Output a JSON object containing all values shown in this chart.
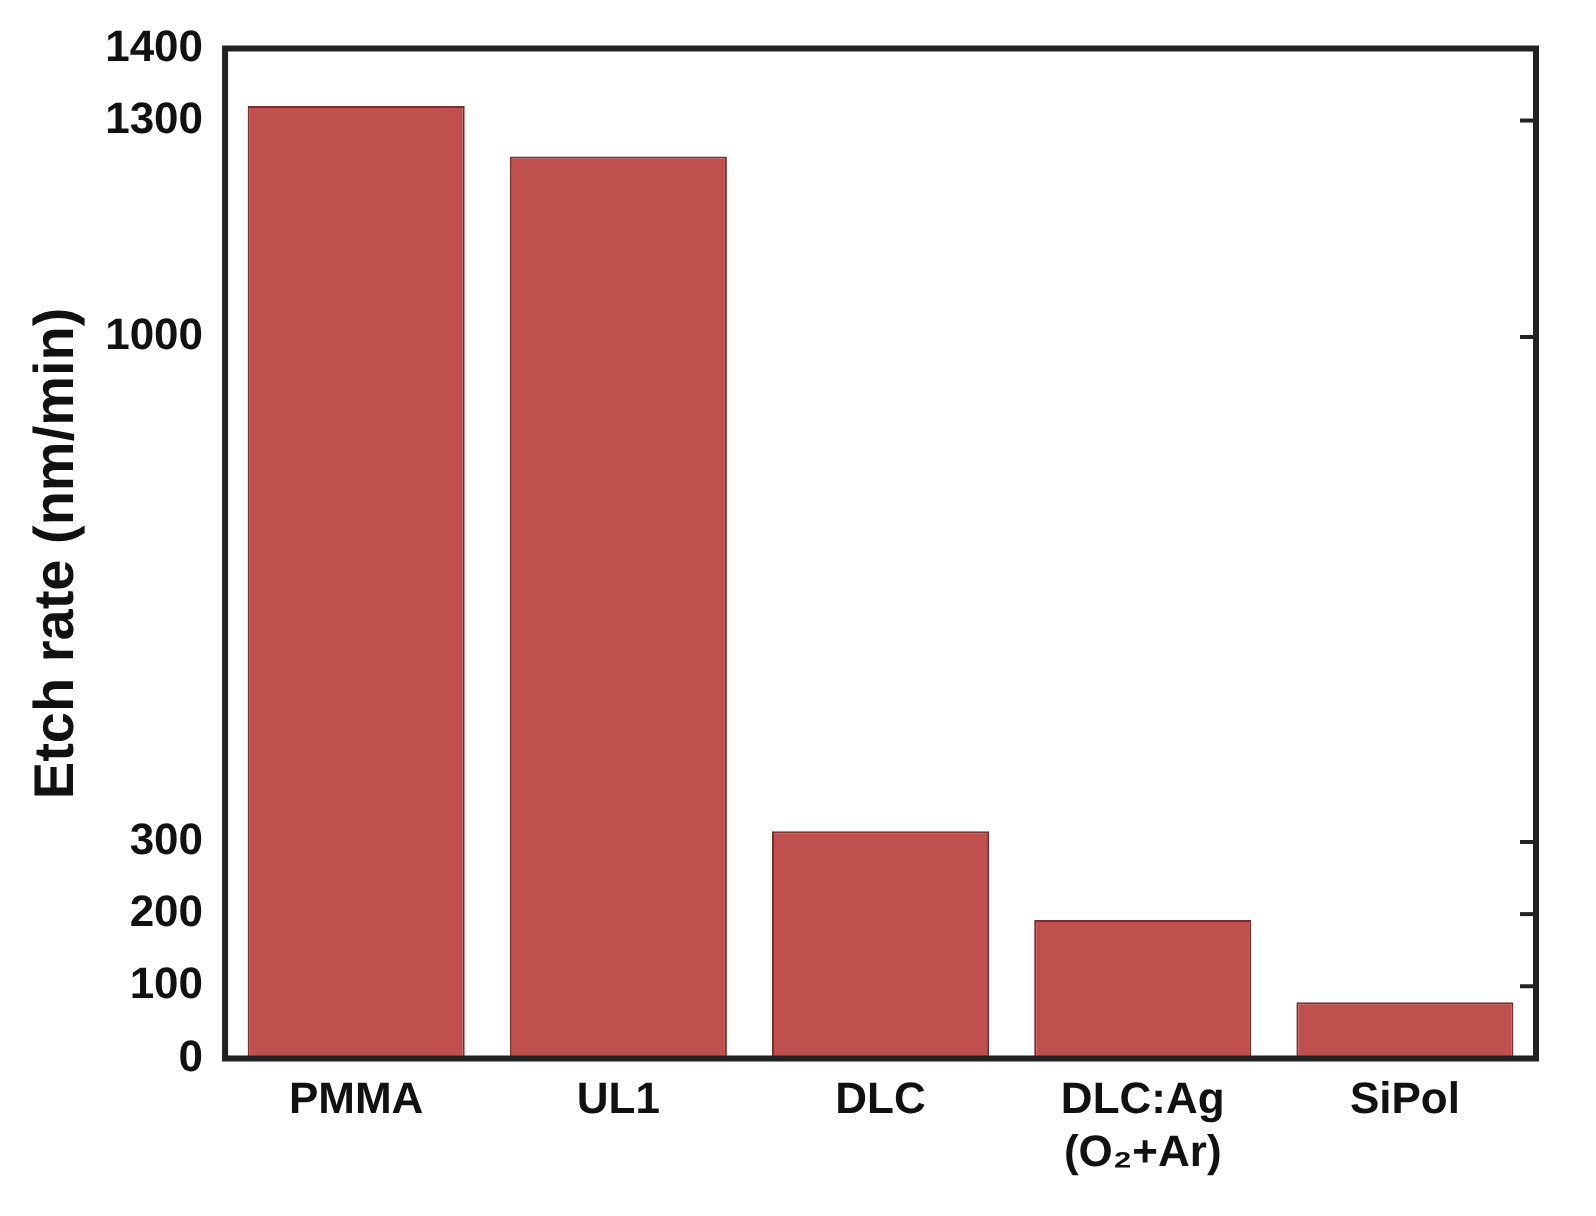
{
  "chart_data": {
    "type": "bar",
    "ylabel": "Etch rate (nm/min)",
    "categories": [
      "PMMA",
      "UL1",
      "DLC",
      "DLC:Ag\n(O₂+Ar)",
      "SiPol"
    ],
    "values": [
      1320,
      1250,
      315,
      192,
      78
    ],
    "color": "#c0504d",
    "ylim": [
      0,
      1400
    ],
    "yticks": [
      0,
      100,
      200,
      300,
      1000,
      1300,
      1400
    ],
    "grid": false,
    "legend": false
  }
}
